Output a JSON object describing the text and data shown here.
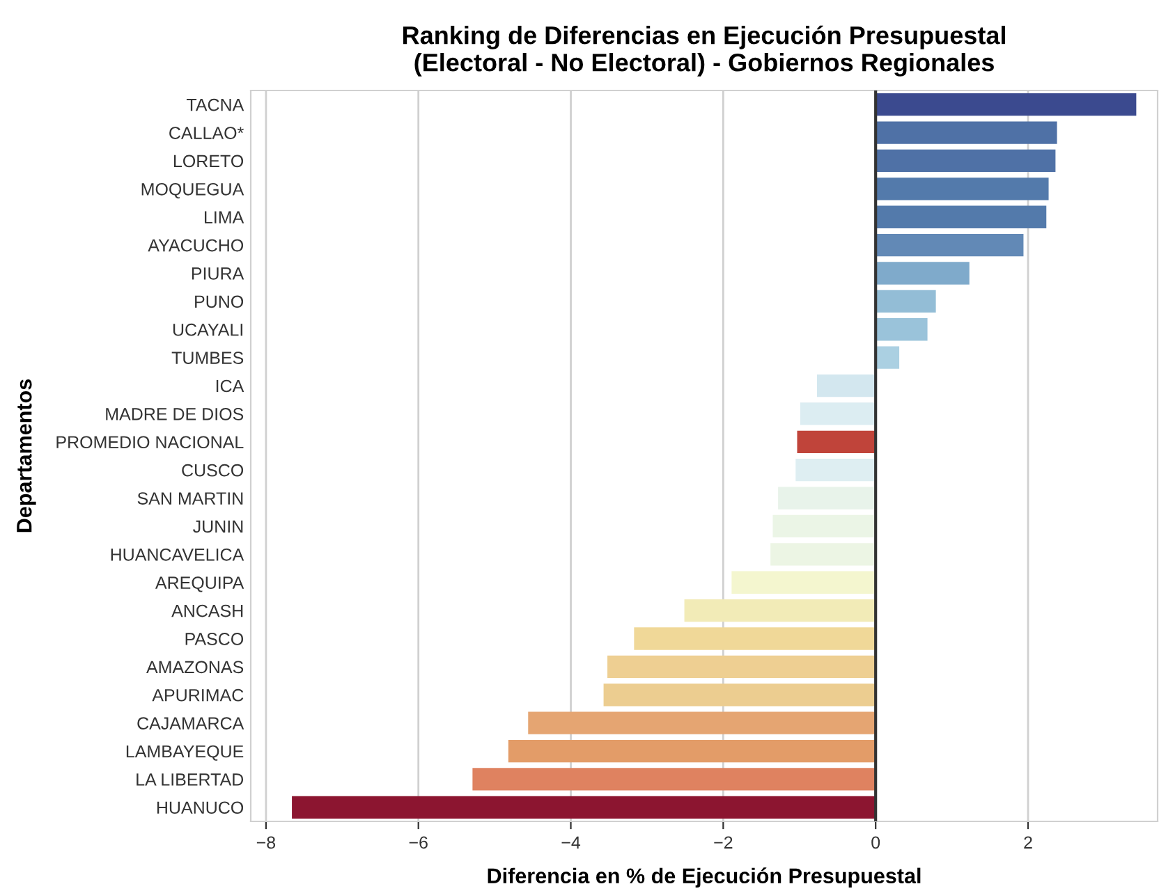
{
  "chart_data": {
    "type": "bar",
    "orientation": "horizontal",
    "title": "Ranking de Diferencias en Ejecución Presupuestal\n(Electoral - No Electoral) - Gobiernos Regionales",
    "xlabel": "Diferencia en % de Ejecución Presupuestal",
    "ylabel": "Departamentos",
    "categories": [
      "TACNA",
      "CALLAO*",
      "LORETO",
      "MOQUEGUA",
      "LIMA",
      "AYACUCHO",
      "PIURA",
      "PUNO",
      "UCAYALI",
      "TUMBES",
      "ICA",
      "MADRE DE DIOS",
      "PROMEDIO NACIONAL",
      "CUSCO",
      "SAN MARTIN",
      "JUNIN",
      "HUANCAVELICA",
      "AREQUIPA",
      "ANCASH",
      "PASCO",
      "AMAZONAS",
      "APURIMAC",
      "CAJAMARCA",
      "LAMBAYEQUE",
      "LA LIBERTAD",
      "HUANUCO"
    ],
    "values": [
      3.42,
      2.38,
      2.36,
      2.27,
      2.24,
      1.94,
      1.23,
      0.79,
      0.68,
      0.31,
      -0.77,
      -0.99,
      -1.03,
      -1.05,
      -1.28,
      -1.35,
      -1.38,
      -1.89,
      -2.51,
      -3.17,
      -3.52,
      -3.57,
      -4.56,
      -4.82,
      -5.29,
      -7.66
    ],
    "colors": [
      "#3b4a8f",
      "#4f71a6",
      "#4f71a6",
      "#537aab",
      "#537aab",
      "#6289b6",
      "#7faacb",
      "#93bdd6",
      "#9ac3da",
      "#abd0e2",
      "#d3e7ef",
      "#dcedf2",
      "#c0443a",
      "#deeef2",
      "#e8f3ea",
      "#ebf5e6",
      "#ecf5e4",
      "#f4f6cf",
      "#f2ebb7",
      "#f0d898",
      "#eecf92",
      "#eccd90",
      "#e5a572",
      "#e39c68",
      "#df8260",
      "#8c1530"
    ],
    "xlim": [
      -8.2,
      3.7
    ],
    "xticks": [
      {
        "value": -8,
        "label": "−8"
      },
      {
        "value": -6,
        "label": "−6"
      },
      {
        "value": -4,
        "label": "−4"
      },
      {
        "value": -2,
        "label": "−2"
      },
      0,
      2
    ],
    "grid": "x",
    "ref_lines": [
      {
        "axis": "x",
        "value": 0,
        "color": "#333333"
      }
    ]
  }
}
